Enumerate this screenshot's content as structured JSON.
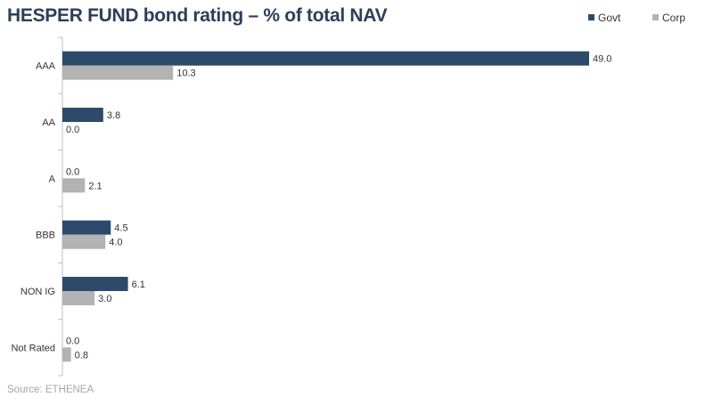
{
  "title": "HESPER FUND bond rating – % of total NAV",
  "source": "Source: ETHENEA",
  "colors": {
    "Govt": "#2e4a6b",
    "Corp": "#b3b3b3",
    "axis": "#bfbfbf",
    "text": "#333333"
  },
  "chart_data": {
    "type": "bar",
    "orientation": "horizontal",
    "categories": [
      "AAA",
      "AA",
      "A",
      "BBB",
      "NON IG",
      "Not Rated"
    ],
    "series": [
      {
        "name": "Govt",
        "values": [
          49.0,
          3.8,
          0.0,
          4.5,
          6.1,
          0.0
        ]
      },
      {
        "name": "Corp",
        "values": [
          10.3,
          0.0,
          2.1,
          4.0,
          3.0,
          0.8
        ]
      }
    ],
    "value_labels": {
      "Govt": [
        "49.0",
        "3.8",
        "0.0",
        "4.5",
        "6.1",
        "0.0"
      ],
      "Corp": [
        "10.3",
        "0.0",
        "2.1",
        "4.0",
        "3.0",
        "0.8"
      ]
    },
    "xlim": [
      0,
      50
    ],
    "legend_position": "top-right",
    "grid": false
  }
}
